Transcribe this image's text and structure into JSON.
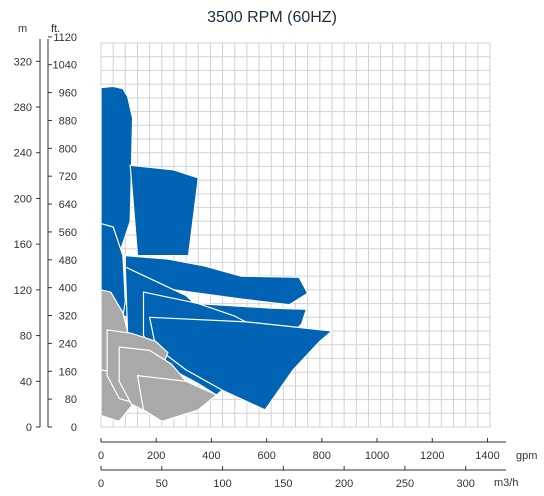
{
  "chart_data": {
    "type": "area",
    "title": "3500 RPM (60HZ)",
    "y_axes": {
      "primary": {
        "unit": "m",
        "ticks": [
          0,
          40,
          80,
          120,
          160,
          200,
          240,
          280,
          320
        ],
        "range": [
          0,
          336
        ]
      },
      "secondary": {
        "unit": "ft.",
        "ticks": [
          0,
          80,
          160,
          240,
          320,
          400,
          480,
          560,
          640,
          720,
          800,
          880,
          960,
          1040,
          1120
        ]
      }
    },
    "x_axes": {
      "gpm": {
        "unit": "gpm",
        "ticks": [
          0,
          200,
          400,
          600,
          800,
          1000,
          1200,
          1400
        ]
      },
      "m3h": {
        "unit": "m3/h",
        "ticks": [
          0,
          50,
          100,
          150,
          200,
          250,
          300
        ],
        "range": [
          0,
          320
        ]
      }
    },
    "grid": true,
    "colors": {
      "blue": "#0063b4",
      "gray": "#a9a9a9",
      "grid": "#d2d2d2",
      "axis": "#333333",
      "title": "#1f2d3d"
    },
    "series": [
      {
        "group": "blue",
        "points": [
          [
            0,
            297
          ],
          [
            10,
            298
          ],
          [
            18,
            296
          ],
          [
            22,
            289
          ],
          [
            26,
            270
          ],
          [
            24,
            180
          ],
          [
            13,
            145
          ],
          [
            0,
            143
          ]
        ]
      },
      {
        "group": "blue",
        "points": [
          [
            24,
            229
          ],
          [
            60,
            225
          ],
          [
            80,
            218
          ],
          [
            72,
            150
          ],
          [
            30,
            150
          ]
        ]
      },
      {
        "group": "blue",
        "points": [
          [
            20,
            150
          ],
          [
            55,
            147
          ],
          [
            85,
            141
          ],
          [
            115,
            132
          ],
          [
            163,
            131
          ],
          [
            170,
            117
          ],
          [
            155,
            107
          ],
          [
            115,
            112
          ],
          [
            60,
            120
          ],
          [
            35,
            122
          ],
          [
            20,
            125
          ]
        ]
      },
      {
        "group": "blue",
        "points": [
          [
            5,
            115
          ],
          [
            25,
            112
          ],
          [
            80,
            108
          ],
          [
            140,
            104
          ],
          [
            169,
            103
          ],
          [
            165,
            90
          ],
          [
            155,
            80
          ],
          [
            140,
            72
          ],
          [
            110,
            64
          ],
          [
            90,
            69
          ],
          [
            70,
            82
          ],
          [
            42,
            94
          ],
          [
            10,
            98
          ]
        ]
      },
      {
        "group": "blue",
        "points": [
          [
            0,
            178
          ],
          [
            10,
            175
          ],
          [
            18,
            150
          ],
          [
            20,
            110
          ],
          [
            14,
            70
          ],
          [
            8,
            60
          ],
          [
            0,
            65
          ]
        ]
      },
      {
        "group": "blue",
        "points": [
          [
            20,
            140
          ],
          [
            70,
            115
          ],
          [
            95,
            90
          ],
          [
            115,
            75
          ],
          [
            125,
            65
          ],
          [
            110,
            35
          ],
          [
            60,
            46
          ],
          [
            22,
            80
          ]
        ]
      },
      {
        "group": "blue",
        "points": [
          [
            35,
            118
          ],
          [
            80,
            108
          ],
          [
            110,
            97
          ],
          [
            130,
            86
          ],
          [
            140,
            75
          ],
          [
            120,
            50
          ],
          [
            95,
            28
          ],
          [
            80,
            38
          ],
          [
            50,
            55
          ],
          [
            35,
            80
          ]
        ]
      },
      {
        "group": "blue",
        "points": [
          [
            40,
            96
          ],
          [
            120,
            92
          ],
          [
            190,
            84
          ],
          [
            180,
            75
          ],
          [
            158,
            50
          ],
          [
            135,
            15
          ],
          [
            100,
            32
          ],
          [
            70,
            50
          ],
          [
            45,
            70
          ]
        ]
      }
    ]
  },
  "gray_regions": [
    {
      "points": [
        [
          0,
          120
        ],
        [
          8,
          118
        ],
        [
          18,
          100
        ],
        [
          25,
          70
        ],
        [
          10,
          30
        ],
        [
          0,
          15
        ]
      ]
    },
    {
      "points": [
        [
          0,
          50
        ],
        [
          10,
          48
        ],
        [
          25,
          38
        ],
        [
          30,
          25
        ],
        [
          15,
          5
        ],
        [
          0,
          10
        ]
      ]
    },
    {
      "points": [
        [
          5,
          85
        ],
        [
          25,
          82
        ],
        [
          45,
          75
        ],
        [
          55,
          65
        ],
        [
          45,
          40
        ],
        [
          30,
          20
        ],
        [
          15,
          25
        ],
        [
          5,
          45
        ]
      ]
    },
    {
      "points": [
        [
          15,
          70
        ],
        [
          40,
          67
        ],
        [
          58,
          55
        ],
        [
          70,
          40
        ],
        [
          60,
          25
        ],
        [
          40,
          12
        ],
        [
          25,
          20
        ],
        [
          15,
          40
        ]
      ]
    },
    {
      "points": [
        [
          30,
          45
        ],
        [
          70,
          40
        ],
        [
          95,
          28
        ],
        [
          80,
          15
        ],
        [
          50,
          5
        ],
        [
          35,
          15
        ]
      ]
    }
  ]
}
